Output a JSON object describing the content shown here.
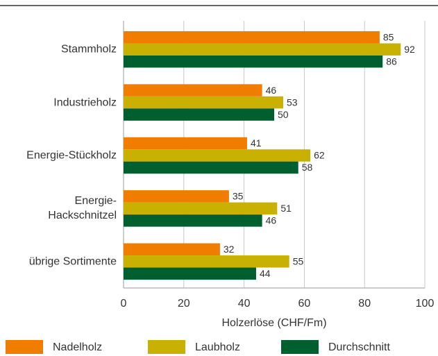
{
  "chart_data": {
    "type": "bar",
    "orientation": "horizontal",
    "categories": [
      "Stammholz",
      "Industrieholz",
      "Energie-Stückholz",
      "Energie-\nHackschnitzel",
      "übrige Sortimente"
    ],
    "series": [
      {
        "name": "Nadelholz",
        "color": "#f07d00",
        "values": [
          85,
          46,
          41,
          35,
          32
        ]
      },
      {
        "name": "Laubholz",
        "color": "#c8b100",
        "values": [
          92,
          53,
          62,
          51,
          55
        ]
      },
      {
        "name": "Durchschnitt",
        "color": "#005f2e",
        "values": [
          86,
          50,
          58,
          46,
          44
        ]
      }
    ],
    "xlabel": "Holzerlöse (CHF/Fm)",
    "xlim": [
      0,
      100
    ],
    "xticks": [
      0,
      20,
      40,
      60,
      80,
      100
    ],
    "grid": true,
    "legend": "bottom"
  }
}
